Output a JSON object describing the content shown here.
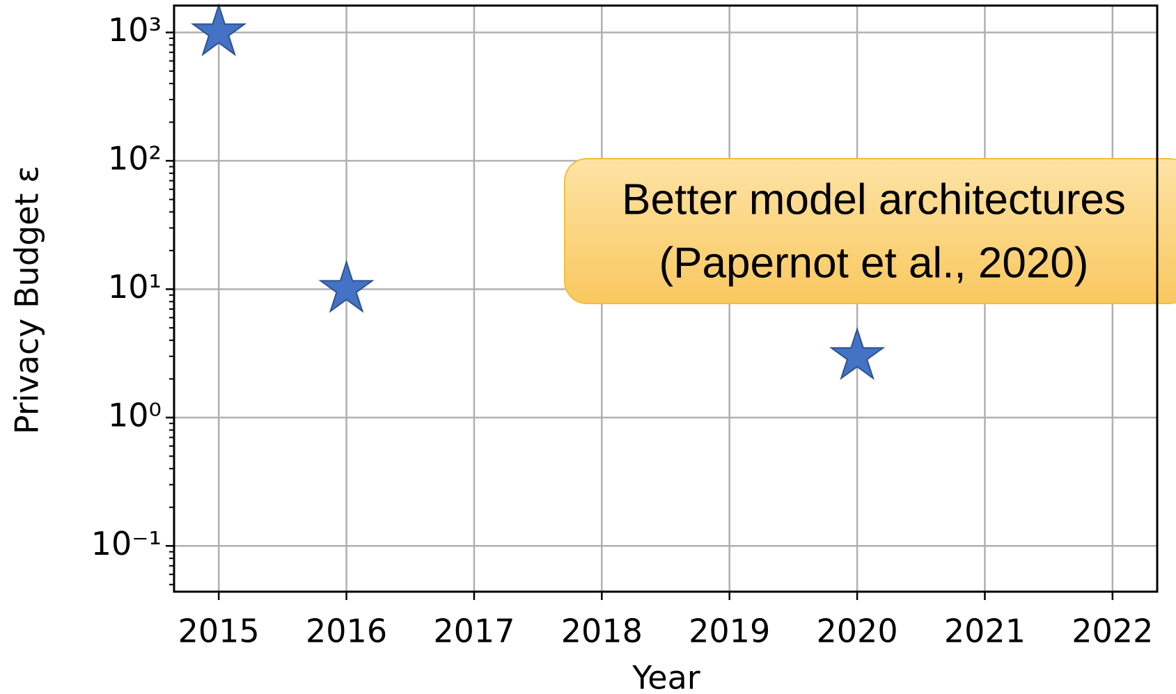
{
  "chart_data": {
    "type": "scatter",
    "marker": "star",
    "color": "#4472c4",
    "edge_color": "#2f528f",
    "x_label": "Year",
    "y_label": "Privacy Budget ε",
    "x": [
      2015,
      2016,
      2020
    ],
    "values": [
      1000,
      10,
      3
    ],
    "xlim": [
      2014.65,
      2022.35
    ],
    "xticks": [
      2015,
      2016,
      2017,
      2018,
      2019,
      2020,
      2021,
      2022
    ],
    "ylim": [
      0.044,
      1620
    ],
    "log_y": true,
    "grid": true,
    "yticks": [
      {
        "value": 0.1,
        "label": "10⁻¹"
      },
      {
        "value": 1,
        "label": "10⁰"
      },
      {
        "value": 10,
        "label": "10¹"
      },
      {
        "value": 100,
        "label": "10²"
      },
      {
        "value": 1000,
        "label": "10³"
      }
    ],
    "yticks_minor": [
      0.05,
      0.06,
      0.07,
      0.08,
      0.09,
      0.2,
      0.3,
      0.4,
      0.5,
      0.6,
      0.7,
      0.8,
      0.9,
      2,
      3,
      4,
      5,
      6,
      7,
      8,
      9,
      20,
      30,
      40,
      50,
      60,
      70,
      80,
      90,
      200,
      300,
      400,
      500,
      600,
      700,
      800,
      900
    ],
    "annotation": {
      "lines": [
        "Better model architectures",
        "(Papernot et al., 2020)"
      ]
    }
  }
}
